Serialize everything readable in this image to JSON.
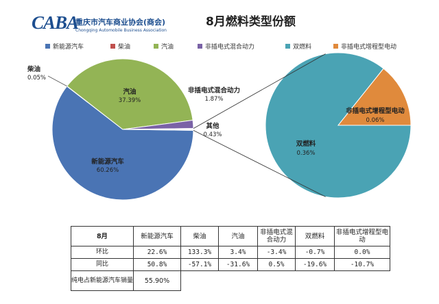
{
  "header": {
    "logo_mark": "CABA",
    "logo_cn": "重庆市汽车商业协会(商会)",
    "logo_en": "Chongqing Automobile Business Association",
    "title": "8月燃料类型份额"
  },
  "colors": {
    "新能源汽车": "#4a74b4",
    "柴油": "#c0504d",
    "汽油": "#93b455",
    "非插电式混合动力": "#7a62a6",
    "双燃料": "#4aa3b4",
    "非插电式增程型电动": "#e08a3c",
    "connector": "#333333"
  },
  "chart_data": {
    "type": "pie",
    "subtype": "pie-of-pie",
    "legend": {
      "position": "top",
      "entries": [
        "新能源汽车",
        "柴油",
        "汽油",
        "非插电式混合动力",
        "双燃料",
        "非插电式增程型电动"
      ]
    },
    "main_pie": {
      "slices": [
        {
          "name": "新能源汽车",
          "value": 60.26,
          "label": "新能源汽车",
          "value_label": "60.26%"
        },
        {
          "name": "柴油",
          "value": 0.05,
          "label": "柴油",
          "value_label": "0.05%"
        },
        {
          "name": "汽油",
          "value": 37.39,
          "label": "汽油",
          "value_label": "37.39%"
        },
        {
          "name": "非插电式混合动力",
          "value": 1.87,
          "label": "非插电式混合动力",
          "value_label": "1.87%"
        },
        {
          "name": "其他",
          "value": 0.43,
          "label": "其他",
          "value_label": "0.43%",
          "is_other": true
        }
      ]
    },
    "secondary_pie": {
      "slices": [
        {
          "name": "双燃料",
          "value": 0.36,
          "label": "双燃料",
          "value_label": "0.36%"
        },
        {
          "name": "非插电式增程型电动",
          "value": 0.06,
          "label": "非插电式增程型电动",
          "value_label": "0.06%"
        }
      ]
    }
  },
  "table": {
    "period": "8月",
    "columns": [
      "新能源汽车",
      "柴油",
      "汽油",
      "非插电式混合动力",
      "双燃料",
      "非插电式增程型电动"
    ],
    "rows": [
      {
        "label": "环比",
        "values": [
          "22.6%",
          "133.3%",
          "3.4%",
          "-3.4%",
          "-0.7%",
          "0.0%"
        ]
      },
      {
        "label": "同比",
        "values": [
          "50.8%",
          "-57.1%",
          "-31.6%",
          "0.5%",
          "-19.6%",
          "-10.7%"
        ]
      }
    ],
    "footer": {
      "label": "纯电占新能源汽车销量",
      "value": "55.90%"
    }
  }
}
